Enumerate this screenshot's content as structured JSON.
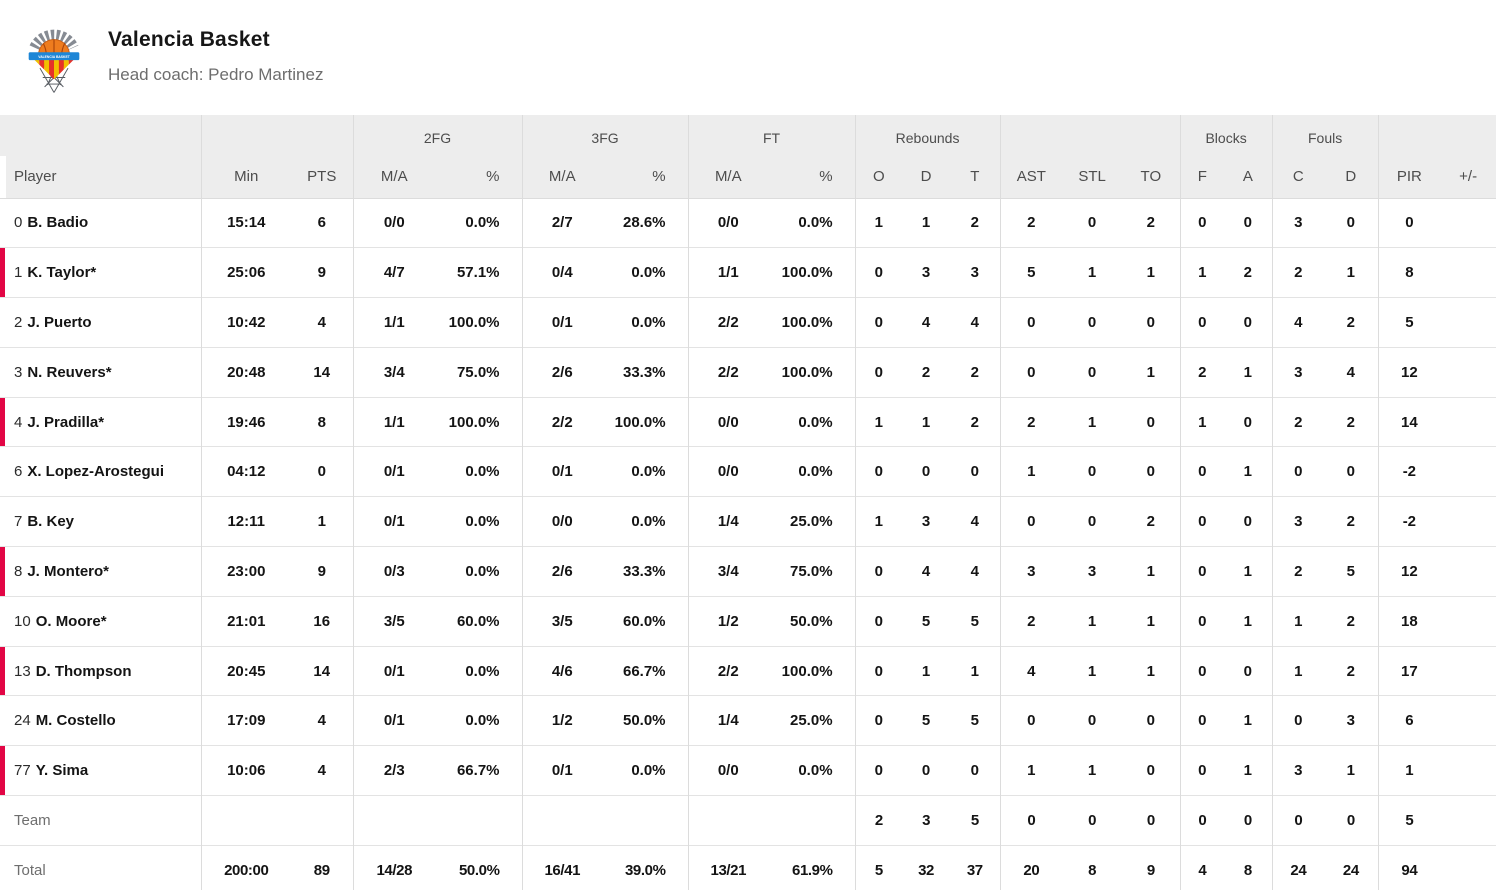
{
  "header": {
    "team_name": "Valencia Basket",
    "coach": "Head coach: Pedro Martinez"
  },
  "colors": {
    "accent_red": "#e20645",
    "header_bg": "#ededed",
    "row_border": "#e3e3e3",
    "header_text": "#4d4d4d",
    "muted_text": "#6e6e6e",
    "logo_orange": "#ee7c1e",
    "logo_blue": "#1e86d6",
    "logo_yellow": "#f3c000",
    "logo_red": "#e63329",
    "logo_gray": "#868b93"
  },
  "table": {
    "groups": {
      "fg2": "2FG",
      "fg3": "3FG",
      "ft": "FT",
      "rebounds": "Rebounds",
      "blocks": "Blocks",
      "fouls": "Fouls"
    },
    "columns": [
      "Player",
      "Min",
      "PTS",
      "M/A",
      "%",
      "M/A",
      "%",
      "M/A",
      "%",
      "O",
      "D",
      "T",
      "AST",
      "STL",
      "TO",
      "F",
      "A",
      "C",
      "D",
      "PIR",
      "+/-"
    ],
    "players": [
      {
        "number": "0",
        "name": "B. Badio",
        "on_court": false,
        "stats": [
          "15:14",
          "6",
          "0/0",
          "0.0%",
          "2/7",
          "28.6%",
          "0/0",
          "0.0%",
          "1",
          "1",
          "2",
          "2",
          "0",
          "2",
          "0",
          "0",
          "3",
          "0",
          "0",
          ""
        ]
      },
      {
        "number": "1",
        "name": "K. Taylor*",
        "on_court": true,
        "stats": [
          "25:06",
          "9",
          "4/7",
          "57.1%",
          "0/4",
          "0.0%",
          "1/1",
          "100.0%",
          "0",
          "3",
          "3",
          "5",
          "1",
          "1",
          "1",
          "2",
          "2",
          "1",
          "8",
          ""
        ]
      },
      {
        "number": "2",
        "name": "J. Puerto",
        "on_court": false,
        "stats": [
          "10:42",
          "4",
          "1/1",
          "100.0%",
          "0/1",
          "0.0%",
          "2/2",
          "100.0%",
          "0",
          "4",
          "4",
          "0",
          "0",
          "0",
          "0",
          "0",
          "4",
          "2",
          "5",
          ""
        ]
      },
      {
        "number": "3",
        "name": "N. Reuvers*",
        "on_court": false,
        "stats": [
          "20:48",
          "14",
          "3/4",
          "75.0%",
          "2/6",
          "33.3%",
          "2/2",
          "100.0%",
          "0",
          "2",
          "2",
          "0",
          "0",
          "1",
          "2",
          "1",
          "3",
          "4",
          "12",
          ""
        ]
      },
      {
        "number": "4",
        "name": "J. Pradilla*",
        "on_court": true,
        "stats": [
          "19:46",
          "8",
          "1/1",
          "100.0%",
          "2/2",
          "100.0%",
          "0/0",
          "0.0%",
          "1",
          "1",
          "2",
          "2",
          "1",
          "0",
          "1",
          "0",
          "2",
          "2",
          "14",
          ""
        ]
      },
      {
        "number": "6",
        "name": "X. Lopez-Arostegui",
        "on_court": false,
        "stats": [
          "04:12",
          "0",
          "0/1",
          "0.0%",
          "0/1",
          "0.0%",
          "0/0",
          "0.0%",
          "0",
          "0",
          "0",
          "1",
          "0",
          "0",
          "0",
          "1",
          "0",
          "0",
          "-2",
          ""
        ]
      },
      {
        "number": "7",
        "name": "B. Key",
        "on_court": false,
        "stats": [
          "12:11",
          "1",
          "0/1",
          "0.0%",
          "0/0",
          "0.0%",
          "1/4",
          "25.0%",
          "1",
          "3",
          "4",
          "0",
          "0",
          "2",
          "0",
          "0",
          "3",
          "2",
          "-2",
          ""
        ]
      },
      {
        "number": "8",
        "name": "J. Montero*",
        "on_court": true,
        "stats": [
          "23:00",
          "9",
          "0/3",
          "0.0%",
          "2/6",
          "33.3%",
          "3/4",
          "75.0%",
          "0",
          "4",
          "4",
          "3",
          "3",
          "1",
          "0",
          "1",
          "2",
          "5",
          "12",
          ""
        ]
      },
      {
        "number": "10",
        "name": "O. Moore*",
        "on_court": false,
        "stats": [
          "21:01",
          "16",
          "3/5",
          "60.0%",
          "3/5",
          "60.0%",
          "1/2",
          "50.0%",
          "0",
          "5",
          "5",
          "2",
          "1",
          "1",
          "0",
          "1",
          "1",
          "2",
          "18",
          ""
        ]
      },
      {
        "number": "13",
        "name": "D. Thompson",
        "on_court": true,
        "stats": [
          "20:45",
          "14",
          "0/1",
          "0.0%",
          "4/6",
          "66.7%",
          "2/2",
          "100.0%",
          "0",
          "1",
          "1",
          "4",
          "1",
          "1",
          "0",
          "0",
          "1",
          "2",
          "17",
          ""
        ]
      },
      {
        "number": "24",
        "name": "M. Costello",
        "on_court": false,
        "stats": [
          "17:09",
          "4",
          "0/1",
          "0.0%",
          "1/2",
          "50.0%",
          "1/4",
          "25.0%",
          "0",
          "5",
          "5",
          "0",
          "0",
          "0",
          "0",
          "1",
          "0",
          "3",
          "6",
          ""
        ]
      },
      {
        "number": "77",
        "name": "Y. Sima",
        "on_court": true,
        "stats": [
          "10:06",
          "4",
          "2/3",
          "66.7%",
          "0/1",
          "0.0%",
          "0/0",
          "0.0%",
          "0",
          "0",
          "0",
          "1",
          "1",
          "0",
          "0",
          "1",
          "3",
          "1",
          "1",
          ""
        ]
      }
    ],
    "team_row": {
      "label": "Team",
      "stats": [
        "",
        "",
        "",
        "",
        "",
        "",
        "",
        "",
        "2",
        "3",
        "5",
        "0",
        "0",
        "0",
        "0",
        "0",
        "0",
        "0",
        "5",
        ""
      ]
    },
    "total_row": {
      "label": "Total",
      "stats": [
        "200:00",
        "89",
        "14/28",
        "50.0%",
        "16/41",
        "39.0%",
        "13/21",
        "61.9%",
        "5",
        "32",
        "37",
        "20",
        "8",
        "9",
        "4",
        "8",
        "24",
        "24",
        "94",
        ""
      ]
    }
  }
}
